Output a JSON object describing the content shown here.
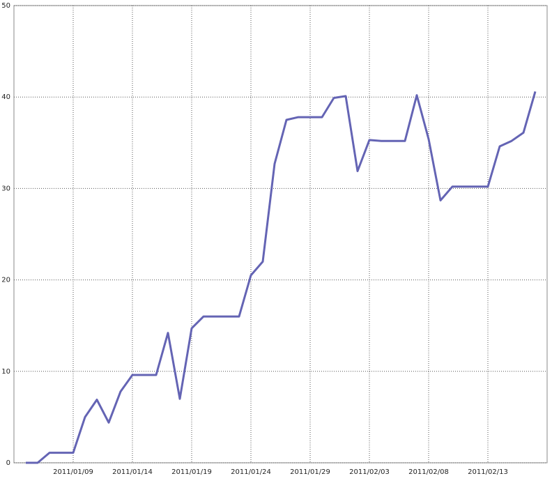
{
  "chart_data": {
    "type": "line",
    "x": [
      "2011/01/05",
      "2011/01/06",
      "2011/01/07",
      "2011/01/08",
      "2011/01/09",
      "2011/01/10",
      "2011/01/11",
      "2011/01/12",
      "2011/01/13",
      "2011/01/14",
      "2011/01/15",
      "2011/01/16",
      "2011/01/17",
      "2011/01/18",
      "2011/01/19",
      "2011/01/20",
      "2011/01/21",
      "2011/01/22",
      "2011/01/23",
      "2011/01/24",
      "2011/01/25",
      "2011/01/26",
      "2011/01/27",
      "2011/01/28",
      "2011/01/29",
      "2011/01/30",
      "2011/01/31",
      "2011/02/01",
      "2011/02/02",
      "2011/02/03",
      "2011/02/04",
      "2011/02/05",
      "2011/02/06",
      "2011/02/07",
      "2011/02/08",
      "2011/02/09",
      "2011/02/10",
      "2011/02/11",
      "2011/02/12",
      "2011/02/13",
      "2011/02/14",
      "2011/02/15",
      "2011/02/16",
      "2011/02/17"
    ],
    "series": [
      {
        "color": "#6464b4",
        "values": [
          0,
          0,
          1.1,
          1.1,
          1.1,
          5.0,
          6.9,
          4.4,
          7.8,
          9.6,
          9.6,
          9.6,
          14.2,
          7.0,
          14.7,
          16.0,
          16.0,
          16.0,
          16.0,
          20.5,
          22.0,
          32.7,
          37.5,
          37.8,
          37.8,
          37.8,
          39.9,
          40.1,
          31.9,
          35.3,
          35.2,
          35.2,
          35.2,
          40.2,
          35.4,
          28.7,
          30.2,
          30.2,
          30.2,
          30.2,
          34.6,
          35.2,
          36.1,
          40.6
        ]
      }
    ],
    "xlim": [
      "2011/01/04",
      "2011/02/18"
    ],
    "xticks": [
      "2011/01/09",
      "2011/01/14",
      "2011/01/19",
      "2011/01/24",
      "2011/01/29",
      "2011/02/03",
      "2011/02/08",
      "2011/02/13"
    ],
    "ylim": [
      0,
      50
    ],
    "yticks": [
      0,
      10,
      20,
      30,
      40,
      50
    ],
    "grid": true
  }
}
